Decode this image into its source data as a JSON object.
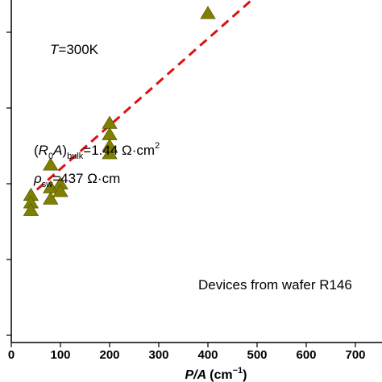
{
  "chart_data": {
    "type": "scatter",
    "xlabel_var": "P/A",
    "xlabel_unit": "(cm",
    "xlabel_exp": "−1",
    "xlabel_close": ")",
    "xlim": [
      0,
      760
    ],
    "xticks": [
      0,
      100,
      200,
      300,
      400,
      500,
      600,
      700
    ],
    "grid": false,
    "series": [
      {
        "marker": "triangle-up",
        "color": "#808000",
        "points": [
          [
            40,
            39
          ],
          [
            40,
            37
          ],
          [
            40,
            35
          ],
          [
            80,
            47
          ],
          [
            80,
            41
          ],
          [
            80,
            38
          ],
          [
            100,
            42
          ],
          [
            100,
            40
          ],
          [
            200,
            58
          ],
          [
            200,
            55
          ],
          [
            200,
            52
          ],
          [
            200,
            50
          ],
          [
            400,
            94
          ],
          [
            400,
            87
          ]
        ]
      },
      {
        "style": "dashed-fit",
        "color": "#dd1111",
        "x": [
          30,
          760
        ],
        "y": [
          37.8,
          121.5
        ]
      }
    ],
    "annotations": {
      "temperature_var": "T",
      "temperature_val": "=300K",
      "r0a_open": "(",
      "r0a_R": "R",
      "r0a_sub0": "0",
      "r0a_A": "A",
      "r0a_close": ")",
      "r0a_sub_bulk": "bulk",
      "r0a_value": "=1.44 Ω·cm",
      "r0a_sup": "2",
      "rho_symbol": "ρ",
      "rho_sub": "sw",
      "rho_value": "=437 Ω·cm",
      "devices": "Devices from wafer R146"
    }
  }
}
